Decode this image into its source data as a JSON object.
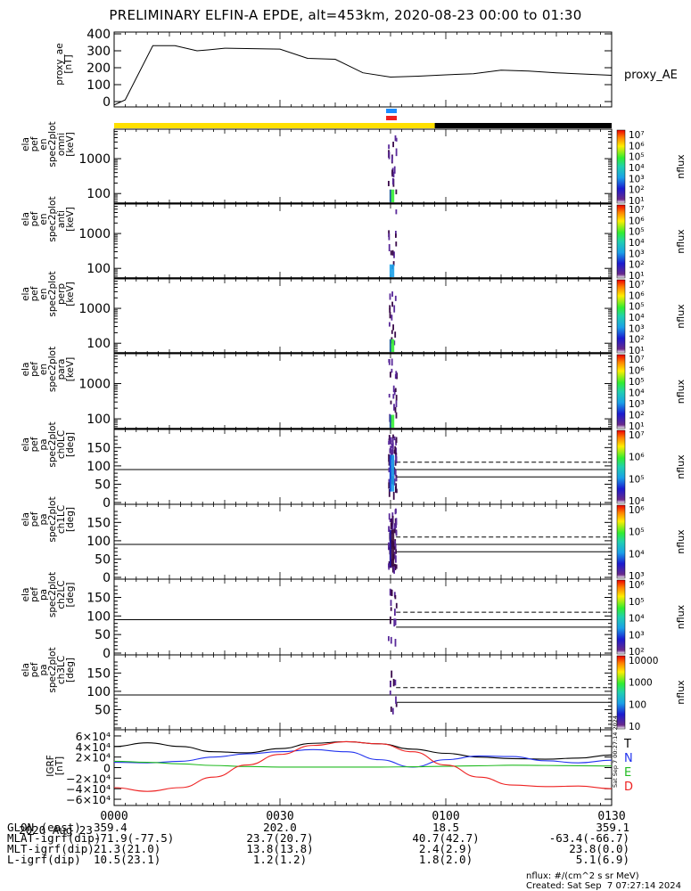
{
  "title": "PRELIMINARY ELFIN-A EPDE, alt=453km, 2020-08-23 00:00 to 01:30",
  "chart_data": [
    {
      "type": "line",
      "panel": "proxy_ae",
      "ylabel": [
        "proxy_ae",
        "[nT]"
      ],
      "legend": "proxy_AE",
      "ylim": [
        0,
        400
      ],
      "yticks": [
        "0",
        "100",
        "200",
        "300",
        "400"
      ],
      "x_minutes": [
        0,
        2,
        7,
        11,
        15,
        17,
        20,
        30,
        35,
        40,
        45,
        50,
        55,
        60,
        65,
        70,
        75,
        80,
        90
      ],
      "values": [
        -20,
        10,
        330,
        330,
        300,
        305,
        315,
        310,
        255,
        250,
        170,
        145,
        150,
        158,
        165,
        185,
        180,
        170,
        155
      ],
      "color": "#000000"
    },
    {
      "type": "heatmap",
      "panel": "omni",
      "ylabel": [
        "ela",
        "pef",
        "en",
        "spec2plot",
        "omni",
        "[keV]"
      ],
      "yticks": [
        "100",
        "1000"
      ],
      "yscale": "log",
      "ylim_keV": [
        50,
        7000
      ],
      "colorbar_ticks": [
        "10¹",
        "10²",
        "10³",
        "10⁴",
        "10⁵",
        "10⁶",
        "10⁷"
      ],
      "colorbar_label": "nflux",
      "data_time_minutes": [
        49.5,
        51.0
      ],
      "peak_color": "#33ee33"
    },
    {
      "type": "heatmap",
      "panel": "anti",
      "ylabel": [
        "ela",
        "pef",
        "en",
        "spec2plot",
        "anti",
        "[keV]"
      ],
      "yticks": [
        "100",
        "1000"
      ],
      "yscale": "log",
      "colorbar_ticks": [
        "10¹",
        "10²",
        "10³",
        "10⁴",
        "10⁵",
        "10⁶",
        "10⁷"
      ],
      "colorbar_label": "nflux",
      "data_time_minutes": [
        49.5,
        51.0
      ],
      "peak_color": "#1aa0e8"
    },
    {
      "type": "heatmap",
      "panel": "perp",
      "ylabel": [
        "ela",
        "pef",
        "en",
        "spec2plot",
        "perp",
        "[keV]"
      ],
      "yticks": [
        "100",
        "1000"
      ],
      "yscale": "log",
      "colorbar_ticks": [
        "10¹",
        "10²",
        "10³",
        "10⁴",
        "10⁵",
        "10⁶",
        "10⁷"
      ],
      "colorbar_label": "nflux",
      "data_time_minutes": [
        49.5,
        51.0
      ],
      "peak_color": "#33ee33"
    },
    {
      "type": "heatmap",
      "panel": "para",
      "ylabel": [
        "ela",
        "pef",
        "en",
        "spec2plot",
        "para",
        "[keV]"
      ],
      "yticks": [
        "100",
        "1000"
      ],
      "yscale": "log",
      "colorbar_ticks": [
        "10¹",
        "10²",
        "10³",
        "10⁴",
        "10⁵",
        "10⁶",
        "10⁷"
      ],
      "colorbar_label": "nflux",
      "data_time_minutes": [
        49.5,
        51.0
      ],
      "peak_color": "#33ee33"
    },
    {
      "type": "heatmap",
      "panel": "ch0LC",
      "ylabel": [
        "ela",
        "pef",
        "pa",
        "spec2plot",
        "ch0LC",
        "[deg]"
      ],
      "yticks": [
        "0",
        "50",
        "100",
        "150"
      ],
      "ylim": [
        0,
        180
      ],
      "colorbar_ticks": [
        "10⁴",
        "10⁵",
        "10⁶",
        "10⁷"
      ],
      "colorbar_label": "nflux",
      "losscone_deg": 70,
      "antilosscone_deg": 110,
      "data_time_minutes": [
        49.5,
        51.0
      ],
      "peak_color": "#1aa0e8"
    },
    {
      "type": "heatmap",
      "panel": "ch1LC",
      "ylabel": [
        "ela",
        "pef",
        "pa",
        "spec2plot",
        "ch1LC",
        "[deg]"
      ],
      "yticks": [
        "0",
        "50",
        "100",
        "150"
      ],
      "ylim": [
        0,
        180
      ],
      "colorbar_ticks": [
        "10³",
        "10⁴",
        "10⁵",
        "10⁶"
      ],
      "colorbar_label": "nflux",
      "losscone_deg": 70,
      "antilosscone_deg": 110,
      "data_time_minutes": [
        49.5,
        51.0
      ],
      "peak_color": "#3a0a3a"
    },
    {
      "type": "heatmap",
      "panel": "ch2LC",
      "ylabel": [
        "ela",
        "pef",
        "pa",
        "spec2plot",
        "ch2LC",
        "[deg]"
      ],
      "yticks": [
        "0",
        "50",
        "100",
        "150"
      ],
      "ylim": [
        0,
        180
      ],
      "colorbar_ticks": [
        "10²",
        "10³",
        "10⁴",
        "10⁵",
        "10⁶"
      ],
      "colorbar_label": "nflux",
      "losscone_deg": 70,
      "antilosscone_deg": 110,
      "data_time_minutes": [
        49.5,
        51.0
      ],
      "peak_color": "#5a2a9a"
    },
    {
      "type": "heatmap",
      "panel": "ch3LC",
      "ylabel": [
        "ela",
        "pef",
        "pa",
        "spec2plot",
        "ch3LC",
        "[deg]"
      ],
      "yticks": [
        "50",
        "100",
        "150"
      ],
      "ylim": [
        0,
        180
      ],
      "colorbar_ticks": [
        "10",
        "100",
        "1000",
        "10000"
      ],
      "colorbar_label": "nflux",
      "losscone_deg": 70,
      "antilosscone_deg": 110,
      "data_time_minutes": [
        49.5,
        51.0
      ],
      "peak_color": "#5a2a9a"
    },
    {
      "type": "line",
      "panel": "IGRF",
      "ylabel": [
        "IGRF",
        "[nT]"
      ],
      "ylim": [
        -65000,
        65000
      ],
      "yticks": [
        "6×10⁴",
        "4×10⁴",
        "2×10⁴",
        "0",
        "−2×10⁴",
        "−4×10⁴",
        "−6×10⁴"
      ],
      "x_minutes": [
        0,
        6,
        12,
        18,
        24,
        30,
        36,
        42,
        48,
        54,
        60,
        66,
        72,
        78,
        84,
        90
      ],
      "series": [
        {
          "name": "T",
          "color": "#000000",
          "values": [
            40000,
            47000,
            40000,
            30000,
            28000,
            36000,
            46000,
            49000,
            45000,
            35000,
            27000,
            20000,
            17000,
            16000,
            18000,
            24000
          ]
        },
        {
          "name": "N",
          "color": "#2233ee",
          "values": [
            10000,
            9000,
            12000,
            20000,
            26000,
            30000,
            34000,
            30000,
            15000,
            1000,
            15000,
            22000,
            21000,
            13000,
            9000,
            14000
          ]
        },
        {
          "name": "E",
          "color": "#22bb22",
          "values": [
            12000,
            10000,
            7000,
            4000,
            2000,
            1000,
            1000,
            1000,
            1000,
            1500,
            2500,
            3500,
            4500,
            4000,
            3500,
            3000
          ]
        },
        {
          "name": "D",
          "color": "#ee2222",
          "values": [
            -38000,
            -45000,
            -38000,
            -18000,
            5000,
            25000,
            42000,
            49000,
            45000,
            30000,
            5000,
            -18000,
            -33000,
            -36000,
            -35000,
            -40000
          ]
        }
      ]
    }
  ],
  "orbit_bar": {
    "segments": [
      {
        "from_minutes": 0,
        "to_minutes": 58,
        "color": "#ffe000"
      },
      {
        "from_minutes": 58,
        "to_minutes": 90,
        "color": "#000000"
      }
    ]
  },
  "science_zone_markers": [
    {
      "color": "#1a8cff"
    },
    {
      "color": "#ee2020"
    }
  ],
  "xaxis": {
    "date_label": "2020 Aug 23",
    "ticks": [
      "0000",
      "0030",
      "0100",
      "0130"
    ],
    "rows": [
      {
        "label": "GLON (east)",
        "values": [
          "359.4",
          "202.0",
          "18.5",
          "359.1"
        ]
      },
      {
        "label": "MLAT-igrf(dip)",
        "values": [
          "-71.9(-77.5)",
          "23.7(20.7)",
          "40.7(42.7)",
          "-63.4(-66.7)"
        ]
      },
      {
        "label": "MLT-igrf(dip)",
        "values": [
          "21.3(21.0)",
          "13.8(13.8)",
          "2.4(2.9)",
          "23.8(0.0)"
        ]
      },
      {
        "label": "L-igrf(dip)",
        "values": [
          "10.5(23.1)",
          "1.2(1.2)",
          "1.8(2.0)",
          "5.1(6.9)"
        ]
      }
    ]
  },
  "credits": {
    "units": "nflux: #/(cm^2 s sr MeV)",
    "created": "Created: Sat Sep  7 07:27:14 2024",
    "vertical_stamp": "Sat Sep  7 00:27:14 2024"
  }
}
